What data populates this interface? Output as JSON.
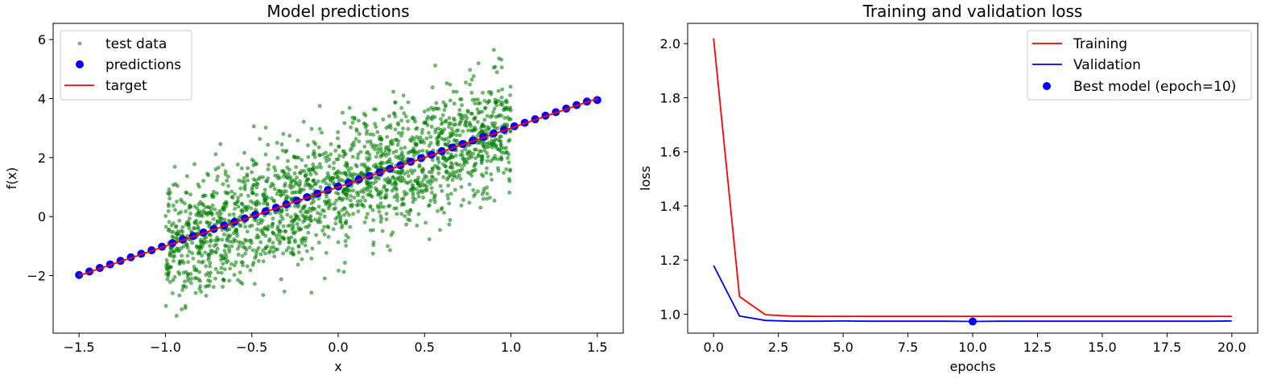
{
  "chart_data": [
    {
      "type": "scatter",
      "title": "Model predictions",
      "xlabel": "x",
      "ylabel": "f(x)",
      "xlim": [
        -1.65,
        1.65
      ],
      "ylim": [
        -3.95,
        6.55
      ],
      "xticks": [
        -1.5,
        -1.0,
        -0.5,
        0.0,
        0.5,
        1.0,
        1.5
      ],
      "xtick_labels": [
        "−1.5",
        "−1.0",
        "−0.5",
        "0.0",
        "0.5",
        "1.0",
        "1.5"
      ],
      "yticks": [
        -2,
        0,
        2,
        4,
        6
      ],
      "ytick_labels": [
        "−2",
        "0",
        "2",
        "4",
        "6"
      ],
      "grid": false,
      "legend_position": "top-left",
      "series": [
        {
          "name": "test data",
          "kind": "scatter",
          "color": "#008000",
          "alpha": 0.55,
          "x_range": [
            -1.0,
            1.0
          ],
          "trend": {
            "slope": 2.0,
            "intercept": 1.0
          },
          "noise_sd": 1.0,
          "count": 2000
        },
        {
          "name": "predictions",
          "kind": "scatter",
          "color": "#0000ff",
          "x": [
            -1.5,
            -1.44,
            -1.38,
            -1.32,
            -1.26,
            -1.2,
            -1.14,
            -1.08,
            -1.02,
            -0.96,
            -0.9,
            -0.84,
            -0.78,
            -0.72,
            -0.66,
            -0.6,
            -0.54,
            -0.48,
            -0.42,
            -0.36,
            -0.3,
            -0.24,
            -0.18,
            -0.12,
            -0.06,
            0.0,
            0.06,
            0.12,
            0.18,
            0.24,
            0.3,
            0.36,
            0.42,
            0.48,
            0.54,
            0.6,
            0.66,
            0.72,
            0.78,
            0.84,
            0.9,
            0.96,
            1.02,
            1.08,
            1.14,
            1.2,
            1.26,
            1.32,
            1.38,
            1.44,
            1.5
          ],
          "y": [
            -1.98,
            -1.86,
            -1.74,
            -1.62,
            -1.5,
            -1.38,
            -1.26,
            -1.14,
            -1.02,
            -0.9,
            -0.78,
            -0.66,
            -0.54,
            -0.42,
            -0.3,
            -0.18,
            -0.06,
            0.06,
            0.18,
            0.3,
            0.42,
            0.54,
            0.66,
            0.78,
            0.9,
            1.02,
            1.14,
            1.26,
            1.38,
            1.5,
            1.62,
            1.74,
            1.86,
            1.98,
            2.1,
            2.22,
            2.34,
            2.46,
            2.58,
            2.7,
            2.82,
            2.94,
            3.06,
            3.18,
            3.3,
            3.42,
            3.54,
            3.66,
            3.78,
            3.9,
            3.95
          ]
        },
        {
          "name": "target",
          "kind": "line",
          "color": "#ff0000",
          "x": [
            -1.5,
            1.5
          ],
          "y": [
            -2.0,
            4.0
          ]
        }
      ]
    },
    {
      "type": "line",
      "title": "Training and validation loss",
      "xlabel": "epochs",
      "ylabel": "loss",
      "xlim": [
        -1.0,
        21.0
      ],
      "ylim": [
        0.93,
        2.075
      ],
      "xticks": [
        0,
        2.5,
        5,
        7.5,
        10,
        12.5,
        15,
        17.5,
        20
      ],
      "xtick_labels": [
        "0.0",
        "2.5",
        "5.0",
        "7.5",
        "10.0",
        "12.5",
        "15.0",
        "17.5",
        "20.0"
      ],
      "yticks": [
        1.0,
        1.2,
        1.4,
        1.6,
        1.8,
        2.0
      ],
      "ytick_labels": [
        "1.0",
        "1.2",
        "1.4",
        "1.6",
        "1.8",
        "2.0"
      ],
      "grid": false,
      "legend_position": "top-right",
      "x": [
        0,
        1,
        2,
        3,
        4,
        5,
        6,
        7,
        8,
        9,
        10,
        11,
        12,
        13,
        14,
        15,
        16,
        17,
        18,
        19,
        20
      ],
      "series": [
        {
          "name": "Training",
          "color": "#ff0000",
          "values": [
            2.02,
            1.065,
            0.998,
            0.993,
            0.992,
            0.992,
            0.992,
            0.992,
            0.992,
            0.992,
            0.992,
            0.992,
            0.992,
            0.992,
            0.992,
            0.992,
            0.992,
            0.992,
            0.992,
            0.992,
            0.992
          ]
        },
        {
          "name": "Validation",
          "color": "#0000ff",
          "values": [
            1.18,
            0.993,
            0.977,
            0.974,
            0.974,
            0.975,
            0.974,
            0.974,
            0.974,
            0.974,
            0.973,
            0.974,
            0.974,
            0.974,
            0.974,
            0.974,
            0.974,
            0.974,
            0.974,
            0.974,
            0.975
          ]
        }
      ],
      "markers": [
        {
          "name": "Best model (epoch=10)",
          "color": "#0000ff",
          "x": 10,
          "y": 0.973
        }
      ]
    }
  ]
}
